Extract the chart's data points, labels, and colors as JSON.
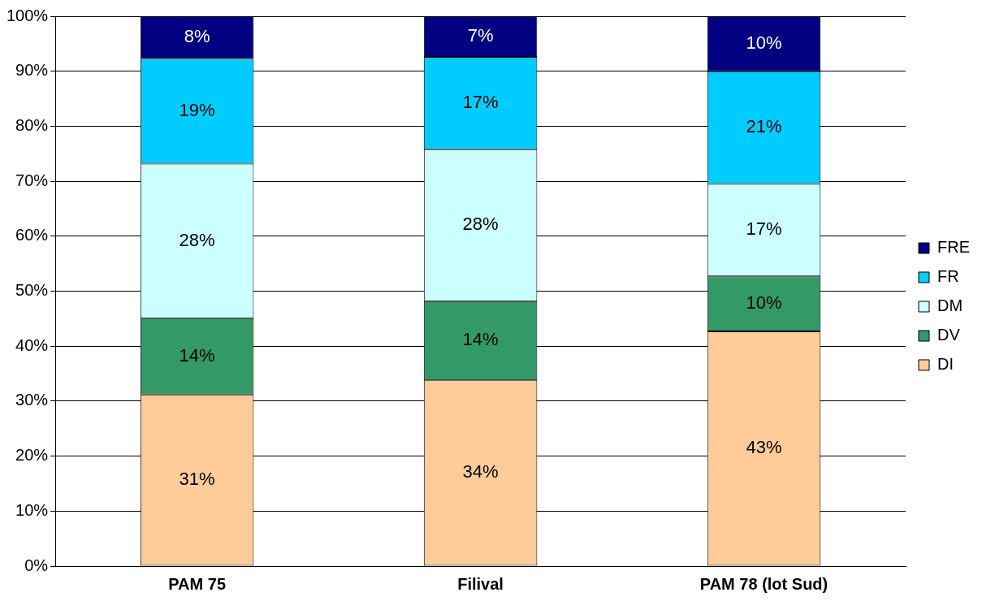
{
  "chart_data": {
    "type": "bar",
    "stacked": true,
    "categories": [
      "PAM 75",
      "Filival",
      "PAM 78 (lot Sud)"
    ],
    "series": [
      {
        "name": "DI",
        "color": "#ffcc99",
        "values": [
          31.2,
          33.8,
          42.7
        ],
        "value_labels": [
          "31%",
          "34%",
          "43%"
        ]
      },
      {
        "name": "DV",
        "color": "#339966",
        "values": [
          13.9,
          14.4,
          10
        ],
        "value_labels": [
          "14%",
          "14%",
          "10%"
        ]
      },
      {
        "name": "DM",
        "color": "#ccffff",
        "values": [
          28.1,
          27.6,
          16.8
        ],
        "value_labels": [
          "28%",
          "28%",
          "17%"
        ]
      },
      {
        "name": "FR",
        "color": "#00ccff",
        "values": [
          19.1,
          16.8,
          20.5
        ],
        "value_labels": [
          "19%",
          "17%",
          "21%"
        ]
      },
      {
        "name": "FRE",
        "color": "#000080",
        "values": [
          7.7,
          7.4,
          10
        ],
        "value_labels": [
          "8%",
          "7%",
          "10%"
        ]
      }
    ],
    "ylim": [
      0,
      100
    ],
    "yticks": [
      {
        "value": 0,
        "label": "0%"
      },
      {
        "value": 10,
        "label": "10%"
      },
      {
        "value": 20,
        "label": "20%"
      },
      {
        "value": 30,
        "label": "30%"
      },
      {
        "value": 40,
        "label": "40%"
      },
      {
        "value": 50,
        "label": "50%"
      },
      {
        "value": 60,
        "label": "60%"
      },
      {
        "value": 70,
        "label": "70%"
      },
      {
        "value": 80,
        "label": "80%"
      },
      {
        "value": 90,
        "label": "90%"
      },
      {
        "value": 100,
        "label": "100%"
      }
    ],
    "grid": "y",
    "legend": "right"
  }
}
